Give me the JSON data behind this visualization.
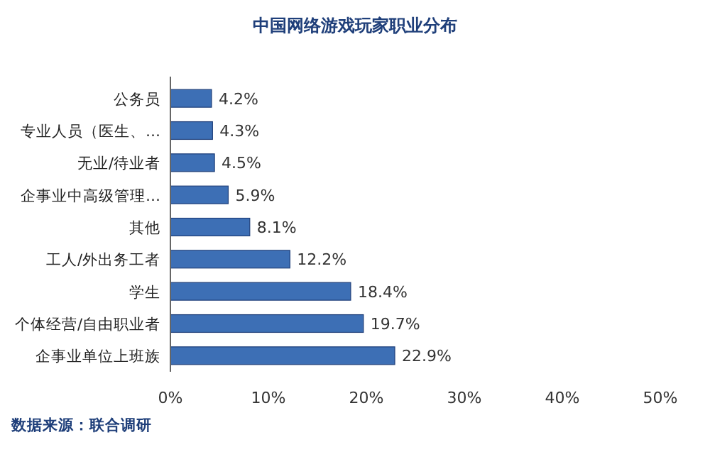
{
  "chart_data": {
    "type": "bar",
    "orientation": "horizontal",
    "title": "中国网络游戏玩家职业分布",
    "categories": [
      "公务员",
      "专业人员（医生、…",
      "无业/待业者",
      "企事业中高级管理…",
      "其他",
      "工人/外出务工者",
      "学生",
      "个体经营/自由职业者",
      "企事业单位上班族"
    ],
    "values": [
      4.2,
      4.3,
      4.5,
      5.9,
      8.1,
      12.2,
      18.4,
      19.7,
      22.9
    ],
    "value_labels": [
      "4.2%",
      "4.3%",
      "4.5%",
      "5.9%",
      "8.1%",
      "12.2%",
      "18.4%",
      "19.7%",
      "22.9%"
    ],
    "color": "#3d6fb5",
    "xlim": [
      0,
      50
    ],
    "xticks": [
      {
        "value": 0,
        "label": "0%"
      },
      {
        "value": 10,
        "label": "10%"
      },
      {
        "value": 20,
        "label": "20%"
      },
      {
        "value": 30,
        "label": "30%"
      },
      {
        "value": 40,
        "label": "40%"
      },
      {
        "value": 50,
        "label": "50%"
      }
    ],
    "grid": false,
    "annotations": [
      "数据来源：联合调研"
    ]
  }
}
